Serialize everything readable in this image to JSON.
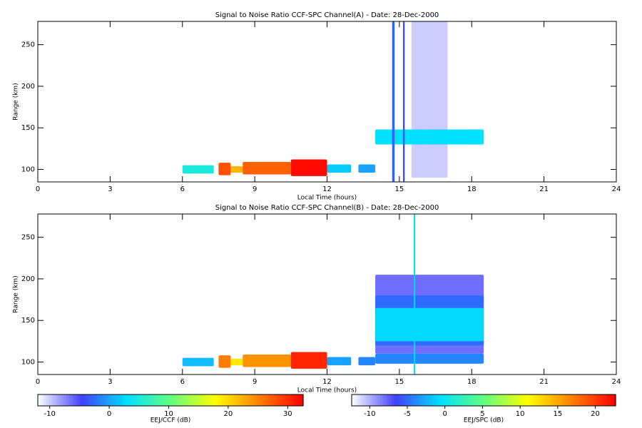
{
  "chart_data": [
    {
      "type": "heatmap",
      "title": "Signal to Noise Ratio CCF-SPC Channel(A) - Date: 28-Dec-2000",
      "x_label": "Local Time (hours)",
      "y_label": "Range (km)",
      "xlim": [
        0,
        24
      ],
      "xticks": [
        0,
        3,
        6,
        9,
        12,
        15,
        18,
        21,
        24
      ],
      "ylim": [
        85,
        278
      ],
      "yticks": [
        100,
        150,
        200,
        250
      ],
      "colormap": [
        "#ffffff",
        "#4040ff",
        "#00e0ff",
        "#60ff80",
        "#ffff00",
        "#ff8000",
        "#ff0000"
      ],
      "colorbar": {
        "label": "EEJ/CCF (dB)",
        "clim": [
          -12,
          32.6
        ],
        "ticks": [
          -10,
          0,
          10,
          20,
          30
        ]
      },
      "cells": [
        {
          "x": [
            6,
            7.3
          ],
          "y": [
            95,
            105
          ],
          "value": 5
        },
        {
          "x": [
            7.5,
            8
          ],
          "y": [
            93,
            108
          ],
          "value": 28
        },
        {
          "x": [
            8,
            8.5
          ],
          "y": [
            96,
            104
          ],
          "value": 22
        },
        {
          "x": [
            8.5,
            10.5
          ],
          "y": [
            94,
            109
          ],
          "value": 27
        },
        {
          "x": [
            10.5,
            12
          ],
          "y": [
            92,
            112
          ],
          "value": 32
        },
        {
          "x": [
            12,
            13
          ],
          "y": [
            96,
            106
          ],
          "value": 2
        },
        {
          "x": [
            13.3,
            14
          ],
          "y": [
            96,
            106
          ],
          "value": 0
        },
        {
          "x": [
            15.5,
            17
          ],
          "y": [
            90,
            278
          ],
          "value": -10
        },
        {
          "x": [
            14,
            18.5
          ],
          "y": [
            130,
            148
          ],
          "value": 3
        },
        {
          "x": [
            14.7,
            14.8
          ],
          "y": [
            85,
            278
          ],
          "value": -3
        },
        {
          "x": [
            15.15,
            15.22
          ],
          "y": [
            85,
            278
          ],
          "value": -4
        }
      ]
    },
    {
      "type": "heatmap",
      "title": "Signal to Noise Ratio CCF-SPC Channel(B) - Date: 28-Dec-2000",
      "x_label": "Local Time (hours)",
      "y_label": "Range (km)",
      "xlim": [
        0,
        24
      ],
      "xticks": [
        0,
        3,
        6,
        9,
        12,
        15,
        18,
        21,
        24
      ],
      "ylim": [
        85,
        278
      ],
      "yticks": [
        100,
        150,
        200,
        250
      ],
      "colormap": [
        "#ffffff",
        "#4040ff",
        "#00e0ff",
        "#60ff80",
        "#ffff00",
        "#ff8000",
        "#ff0000"
      ],
      "colorbar": {
        "label": "EEJ/SPC (dB)",
        "clim": [
          -12.4,
          22.7
        ],
        "ticks": [
          -10,
          -5,
          0,
          5,
          10,
          15,
          20
        ]
      },
      "cells": [
        {
          "x": [
            6,
            7.3
          ],
          "y": [
            95,
            105
          ],
          "value": -2
        },
        {
          "x": [
            7.5,
            8
          ],
          "y": [
            93,
            108
          ],
          "value": 17
        },
        {
          "x": [
            8,
            8.5
          ],
          "y": [
            96,
            104
          ],
          "value": 12
        },
        {
          "x": [
            8.5,
            10.5
          ],
          "y": [
            94,
            109
          ],
          "value": 16
        },
        {
          "x": [
            10.5,
            12
          ],
          "y": [
            92,
            112
          ],
          "value": 21
        },
        {
          "x": [
            12,
            13
          ],
          "y": [
            96,
            106
          ],
          "value": -3
        },
        {
          "x": [
            13.3,
            14
          ],
          "y": [
            96,
            106
          ],
          "value": -4
        },
        {
          "x": [
            14,
            18.5
          ],
          "y": [
            110,
            205
          ],
          "value": -8
        },
        {
          "x": [
            14,
            18.5
          ],
          "y": [
            120,
            180
          ],
          "value": -5
        },
        {
          "x": [
            14,
            18.5
          ],
          "y": [
            125,
            165
          ],
          "value": -1
        },
        {
          "x": [
            14,
            18.5
          ],
          "y": [
            98,
            110
          ],
          "value": -4
        },
        {
          "x": [
            15.6,
            15.66
          ],
          "y": [
            85,
            278
          ],
          "value": -1
        }
      ]
    }
  ]
}
